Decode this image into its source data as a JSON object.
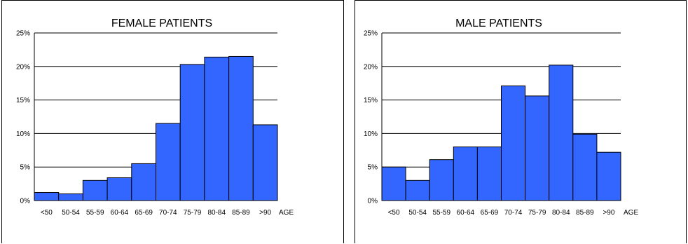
{
  "chart_data": [
    {
      "type": "bar",
      "title": "FEMALE PATIENTS",
      "xlabel": "AGE",
      "ylabel": "",
      "categories": [
        "<50",
        "50-54",
        "55-59",
        "60-64",
        "65-69",
        "70-74",
        "75-79",
        "80-84",
        "85-89",
        ">90"
      ],
      "values": [
        1.2,
        1.0,
        3.0,
        3.4,
        5.5,
        11.5,
        20.3,
        21.4,
        21.5,
        11.3
      ],
      "yticks": [
        "0%",
        "5%",
        "10%",
        "15%",
        "20%",
        "25%"
      ],
      "ylim": [
        0,
        25
      ],
      "grid": true,
      "bar_color": "#3366ff"
    },
    {
      "type": "bar",
      "title": "MALE PATIENTS",
      "xlabel": "AGE",
      "ylabel": "",
      "categories": [
        "<50",
        "50-54",
        "55-59",
        "60-64",
        "65-69",
        "70-74",
        "75-79",
        "80-84",
        "85-89",
        ">90"
      ],
      "values": [
        5.0,
        3.0,
        6.1,
        8.0,
        8.0,
        17.1,
        15.6,
        20.2,
        9.9,
        7.2
      ],
      "yticks": [
        "0%",
        "5%",
        "10%",
        "15%",
        "20%",
        "25%"
      ],
      "ylim": [
        0,
        25
      ],
      "grid": true,
      "bar_color": "#3366ff"
    }
  ]
}
